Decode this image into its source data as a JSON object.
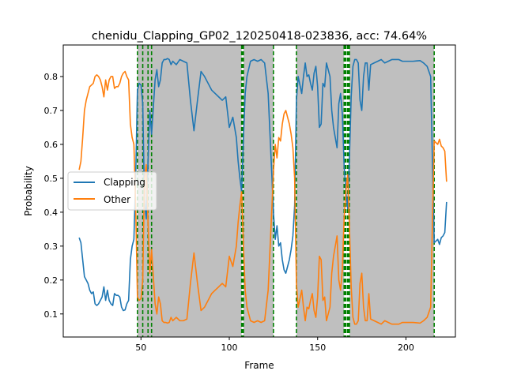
{
  "chart_data": {
    "type": "line",
    "title": "chenidu_Clapping_GP02_120250418-023836,  acc: 74.64%",
    "xlabel": "Frame",
    "ylabel": "Probability",
    "xlim": [
      6,
      228
    ],
    "ylim": [
      0.032,
      0.893
    ],
    "xticks": [
      50,
      100,
      150,
      200
    ],
    "yticks": [
      0.1,
      0.2,
      0.3,
      0.4,
      0.5,
      0.6,
      0.7,
      0.8
    ],
    "grid": false,
    "legend_position": "center-left",
    "shaded_regions": [
      [
        48,
        107
      ],
      [
        108,
        125
      ],
      [
        138,
        165
      ],
      [
        168,
        216
      ]
    ],
    "shade_color": "#bfbfbf",
    "boundary_lines": [
      48,
      51,
      54,
      56,
      107,
      107.5,
      108,
      125,
      138,
      165,
      165.5,
      166,
      167,
      167.5,
      168,
      216
    ],
    "boundary_color": "#008000",
    "series": [
      {
        "name": "Clapping",
        "color": "#1f77b4",
        "x": [
          15,
          16,
          17,
          18,
          19,
          20,
          21,
          22,
          23,
          24,
          25,
          26,
          27,
          28,
          29,
          30,
          31,
          32,
          33,
          34,
          35,
          36,
          37,
          38,
          39,
          40,
          41,
          42,
          43,
          44,
          45,
          46,
          47,
          48,
          49,
          50,
          51,
          52,
          53,
          54,
          55,
          56,
          57,
          58,
          59,
          60,
          61,
          62,
          63,
          64,
          65,
          66,
          67,
          68,
          69,
          70,
          72,
          74,
          76,
          78,
          80,
          82,
          84,
          86,
          88,
          90,
          92,
          94,
          96,
          98,
          100,
          102,
          104,
          105,
          106,
          107,
          108,
          109,
          110,
          112,
          114,
          116,
          118,
          120,
          122,
          124,
          125,
          126,
          127,
          128,
          129,
          130,
          131,
          132,
          133,
          134,
          135,
          136,
          137,
          138,
          139,
          140,
          141,
          142,
          143,
          144,
          145,
          146,
          147,
          148,
          149,
          150,
          151,
          152,
          153,
          154,
          155,
          156,
          157,
          158,
          159,
          160,
          161,
          162,
          163,
          164,
          165,
          166,
          167,
          168,
          169,
          170,
          171,
          172,
          173,
          174,
          175,
          176,
          177,
          178,
          179,
          180,
          182,
          184,
          186,
          188,
          190,
          192,
          194,
          196,
          198,
          200,
          202,
          204,
          206,
          208,
          210,
          212,
          214,
          215,
          216,
          217,
          218,
          219,
          220,
          221,
          222,
          223
        ],
        "y": [
          0.325,
          0.31,
          0.26,
          0.21,
          0.2,
          0.19,
          0.17,
          0.16,
          0.165,
          0.13,
          0.125,
          0.13,
          0.14,
          0.15,
          0.18,
          0.14,
          0.17,
          0.14,
          0.13,
          0.125,
          0.16,
          0.155,
          0.155,
          0.15,
          0.12,
          0.11,
          0.112,
          0.13,
          0.14,
          0.26,
          0.3,
          0.32,
          0.5,
          0.76,
          0.78,
          0.775,
          0.72,
          0.43,
          0.38,
          0.55,
          0.7,
          0.63,
          0.71,
          0.79,
          0.82,
          0.77,
          0.79,
          0.84,
          0.85,
          0.85,
          0.853,
          0.85,
          0.835,
          0.845,
          0.84,
          0.835,
          0.85,
          0.845,
          0.84,
          0.73,
          0.64,
          0.73,
          0.815,
          0.8,
          0.78,
          0.76,
          0.75,
          0.74,
          0.73,
          0.74,
          0.65,
          0.68,
          0.62,
          0.55,
          0.5,
          0.46,
          0.62,
          0.75,
          0.8,
          0.845,
          0.85,
          0.845,
          0.85,
          0.84,
          0.75,
          0.52,
          0.4,
          0.32,
          0.36,
          0.3,
          0.31,
          0.26,
          0.23,
          0.22,
          0.24,
          0.26,
          0.29,
          0.33,
          0.42,
          0.73,
          0.8,
          0.775,
          0.75,
          0.8,
          0.84,
          0.8,
          0.805,
          0.78,
          0.76,
          0.81,
          0.83,
          0.77,
          0.65,
          0.66,
          0.78,
          0.77,
          0.84,
          0.82,
          0.8,
          0.7,
          0.65,
          0.62,
          0.59,
          0.72,
          0.75,
          0.69,
          0.54,
          0.46,
          0.41,
          0.56,
          0.74,
          0.83,
          0.85,
          0.85,
          0.84,
          0.73,
          0.7,
          0.8,
          0.84,
          0.84,
          0.76,
          0.835,
          0.84,
          0.845,
          0.85,
          0.84,
          0.845,
          0.85,
          0.85,
          0.85,
          0.845,
          0.845,
          0.845,
          0.845,
          0.846,
          0.847,
          0.84,
          0.83,
          0.8,
          0.55,
          0.31,
          0.315,
          0.32,
          0.305,
          0.325,
          0.33,
          0.34,
          0.43
        ]
      },
      {
        "name": "Other",
        "color": "#ff7f0e",
        "x": [
          15,
          16,
          17,
          18,
          19,
          20,
          21,
          22,
          23,
          24,
          25,
          26,
          27,
          28,
          29,
          30,
          31,
          32,
          33,
          34,
          35,
          36,
          37,
          38,
          39,
          40,
          41,
          42,
          43,
          44,
          45,
          46,
          47,
          48,
          49,
          50,
          51,
          52,
          53,
          54,
          55,
          56,
          57,
          58,
          59,
          60,
          61,
          62,
          63,
          64,
          65,
          66,
          67,
          68,
          69,
          70,
          72,
          74,
          76,
          78,
          80,
          82,
          84,
          86,
          88,
          90,
          92,
          94,
          96,
          98,
          100,
          102,
          104,
          105,
          106,
          107,
          108,
          109,
          110,
          112,
          114,
          116,
          118,
          120,
          122,
          124,
          125,
          126,
          127,
          128,
          129,
          130,
          131,
          132,
          133,
          134,
          135,
          136,
          137,
          138,
          139,
          140,
          141,
          142,
          143,
          144,
          145,
          146,
          147,
          148,
          149,
          150,
          151,
          152,
          153,
          154,
          155,
          156,
          157,
          158,
          159,
          160,
          161,
          162,
          163,
          164,
          165,
          166,
          167,
          168,
          169,
          170,
          171,
          172,
          173,
          174,
          175,
          176,
          177,
          178,
          179,
          180,
          182,
          184,
          186,
          188,
          190,
          192,
          194,
          196,
          198,
          200,
          202,
          204,
          206,
          208,
          210,
          212,
          214,
          215,
          216,
          217,
          218,
          219,
          220,
          221,
          222,
          223
        ],
        "y": [
          0.525,
          0.55,
          0.62,
          0.7,
          0.73,
          0.75,
          0.77,
          0.775,
          0.78,
          0.8,
          0.805,
          0.8,
          0.79,
          0.77,
          0.74,
          0.79,
          0.76,
          0.79,
          0.8,
          0.8,
          0.765,
          0.77,
          0.77,
          0.78,
          0.8,
          0.81,
          0.815,
          0.8,
          0.79,
          0.66,
          0.62,
          0.6,
          0.42,
          0.15,
          0.14,
          0.145,
          0.2,
          0.5,
          0.54,
          0.37,
          0.22,
          0.29,
          0.21,
          0.13,
          0.1,
          0.15,
          0.13,
          0.08,
          0.075,
          0.075,
          0.073,
          0.075,
          0.09,
          0.08,
          0.085,
          0.09,
          0.08,
          0.08,
          0.085,
          0.19,
          0.28,
          0.19,
          0.11,
          0.12,
          0.14,
          0.16,
          0.17,
          0.18,
          0.19,
          0.18,
          0.27,
          0.24,
          0.3,
          0.37,
          0.42,
          0.46,
          0.3,
          0.17,
          0.12,
          0.08,
          0.075,
          0.08,
          0.075,
          0.08,
          0.17,
          0.4,
          0.52,
          0.6,
          0.56,
          0.62,
          0.61,
          0.66,
          0.69,
          0.7,
          0.68,
          0.66,
          0.63,
          0.59,
          0.5,
          0.19,
          0.12,
          0.145,
          0.17,
          0.12,
          0.08,
          0.12,
          0.115,
          0.14,
          0.16,
          0.11,
          0.09,
          0.15,
          0.27,
          0.26,
          0.14,
          0.15,
          0.08,
          0.1,
          0.12,
          0.22,
          0.27,
          0.3,
          0.33,
          0.2,
          0.17,
          0.23,
          0.38,
          0.46,
          0.51,
          0.36,
          0.18,
          0.09,
          0.07,
          0.07,
          0.08,
          0.19,
          0.22,
          0.12,
          0.08,
          0.08,
          0.16,
          0.085,
          0.08,
          0.075,
          0.07,
          0.08,
          0.075,
          0.07,
          0.07,
          0.07,
          0.075,
          0.075,
          0.075,
          0.075,
          0.074,
          0.073,
          0.08,
          0.09,
          0.12,
          0.37,
          0.61,
          0.605,
          0.6,
          0.615,
          0.595,
          0.59,
          0.58,
          0.49
        ]
      }
    ]
  }
}
